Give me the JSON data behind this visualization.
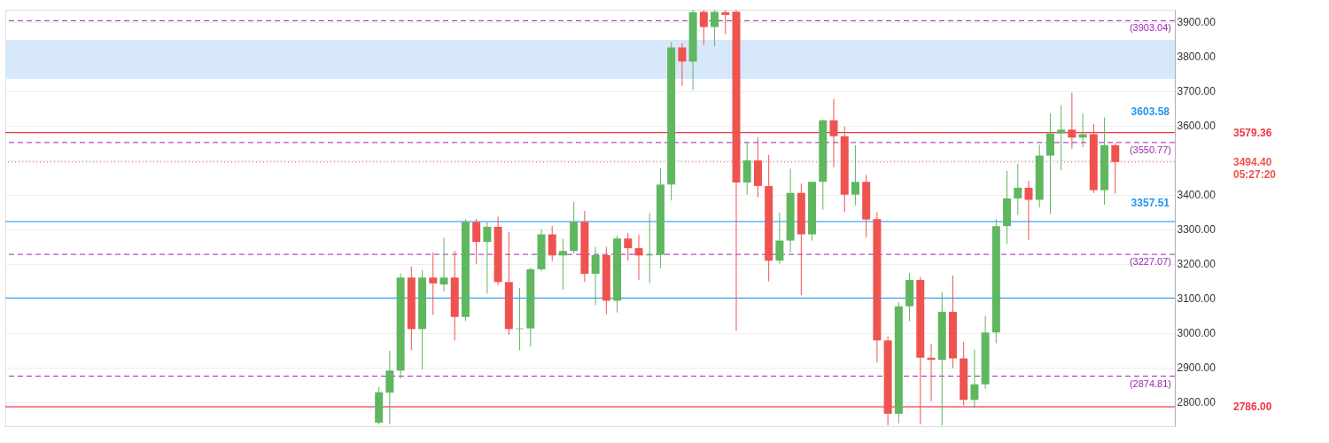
{
  "chart_data": {
    "type": "candlestick",
    "categories": [
      null,
      null,
      null,
      null,
      null,
      null,
      null,
      null,
      null,
      null,
      null,
      null,
      null,
      null,
      null,
      null,
      null,
      null,
      null,
      null,
      null,
      null,
      null,
      null,
      null,
      null,
      null,
      null,
      null,
      null,
      null,
      null,
      null,
      null,
      null,
      null,
      null,
      null,
      null,
      null,
      null,
      null,
      null,
      null,
      null,
      null,
      null,
      null,
      null,
      null,
      null,
      null,
      null,
      null,
      null,
      null,
      null,
      null,
      null,
      null,
      null,
      null,
      null,
      null,
      null,
      null,
      null,
      null,
      null,
      null,
      null,
      null,
      null,
      null,
      null,
      null,
      null,
      null,
      null,
      null,
      null,
      null,
      null,
      null,
      null,
      null,
      null,
      null,
      null,
      null,
      null,
      null,
      null,
      null,
      null,
      null,
      null,
      null,
      null,
      null,
      null,
      null,
      null,
      null,
      null,
      null,
      null,
      null
    ],
    "ohlc": [
      null,
      null,
      null,
      null,
      null,
      null,
      null,
      null,
      null,
      null,
      null,
      null,
      null,
      null,
      null,
      null,
      null,
      null,
      null,
      null,
      null,
      null,
      null,
      null,
      null,
      null,
      null,
      null,
      null,
      null,
      null,
      null,
      null,
      null,
      [
        2740,
        2843,
        2735,
        2828
      ],
      [
        2827,
        2948,
        2735,
        2891
      ],
      [
        2891,
        3172,
        2867,
        3160
      ],
      [
        3160,
        3192,
        2950,
        3011
      ],
      [
        3011,
        3181,
        2894,
        3160
      ],
      [
        3160,
        3233,
        3052,
        3143
      ],
      [
        3140,
        3275,
        3120,
        3160
      ],
      [
        3160,
        3237,
        2978,
        3046
      ],
      [
        3046,
        3329,
        3034,
        3321
      ],
      [
        3321,
        3330,
        3200,
        3263
      ],
      [
        3263,
        3321,
        3113,
        3307
      ],
      [
        3307,
        3336,
        3138,
        3147
      ],
      [
        3147,
        3291,
        2994,
        3011
      ],
      [
        3011,
        3130,
        2950,
        3013
      ],
      [
        3013,
        3189,
        2960,
        3184
      ],
      [
        3184,
        3301,
        3178,
        3285
      ],
      [
        3285,
        3309,
        3208,
        3224
      ],
      [
        3224,
        3272,
        3125,
        3237
      ],
      [
        3237,
        3379,
        3229,
        3321
      ],
      [
        3321,
        3353,
        3147,
        3171
      ],
      [
        3171,
        3249,
        3080,
        3225
      ],
      [
        3225,
        3249,
        3054,
        3093
      ],
      [
        3093,
        3281,
        3059,
        3273
      ],
      [
        3273,
        3289,
        3209,
        3245
      ],
      [
        3245,
        3285,
        3153,
        3224
      ],
      [
        3224,
        3347,
        3144,
        3226
      ],
      [
        3226,
        3476,
        3187,
        3429
      ],
      [
        3429,
        3842,
        3383,
        3826
      ],
      [
        3826,
        3838,
        3715,
        3785
      ],
      [
        3785,
        3934,
        3703,
        3928
      ],
      [
        3929,
        3934,
        3833,
        3885
      ],
      [
        3885,
        3934,
        3829,
        3929
      ],
      [
        3928,
        3934,
        3865,
        3920
      ],
      [
        3929,
        3934,
        3006,
        3435
      ],
      [
        3435,
        3553,
        3400,
        3499
      ],
      [
        3499,
        3565,
        3392,
        3425
      ],
      [
        3425,
        3515,
        3149,
        3209
      ],
      [
        3209,
        3348,
        3200,
        3267
      ],
      [
        3267,
        3475,
        3232,
        3405
      ],
      [
        3405,
        3432,
        3109,
        3285
      ],
      [
        3285,
        3437,
        3267,
        3437
      ],
      [
        3437,
        3617,
        3356,
        3615
      ],
      [
        3615,
        3677,
        3480,
        3569
      ],
      [
        3569,
        3597,
        3349,
        3400
      ],
      [
        3400,
        3543,
        3369,
        3437
      ],
      [
        3437,
        3457,
        3277,
        3328
      ],
      [
        3329,
        3349,
        2915,
        2978
      ],
      [
        2978,
        2990,
        2732,
        2766
      ],
      [
        2766,
        3089,
        2738,
        3077
      ],
      [
        3077,
        3173,
        3034,
        3153
      ],
      [
        3153,
        3162,
        2735,
        2928
      ],
      [
        2928,
        2968,
        2802,
        2922
      ],
      [
        2922,
        3117,
        2732,
        3061
      ],
      [
        3061,
        3166,
        2898,
        2926
      ],
      [
        2926,
        2974,
        2790,
        2806
      ],
      [
        2806,
        2952,
        2782,
        2851
      ],
      [
        2851,
        3049,
        2838,
        3001
      ],
      [
        3001,
        3329,
        2970,
        3309
      ],
      [
        3309,
        3469,
        3257,
        3389
      ],
      [
        3389,
        3489,
        3341,
        3420
      ],
      [
        3420,
        3440,
        3269,
        3385
      ],
      [
        3385,
        3545,
        3363,
        3513
      ],
      [
        3513,
        3635,
        3344,
        3577
      ],
      [
        3577,
        3659,
        3471,
        3588
      ],
      [
        3588,
        3695,
        3533,
        3565
      ],
      [
        3565,
        3635,
        3537,
        3575
      ],
      [
        3575,
        3605,
        3405,
        3413
      ],
      [
        3413,
        3623,
        3371,
        3543
      ],
      [
        3543,
        3549,
        3403,
        3494.4
      ],
      null,
      null,
      null,
      null,
      null
    ],
    "colors": [
      null,
      null,
      null,
      null,
      null,
      null,
      null,
      null,
      null,
      null,
      null,
      null,
      null,
      null,
      null,
      null,
      null,
      null,
      null,
      null,
      null,
      null,
      null,
      null,
      null,
      null,
      null,
      null,
      null,
      null,
      null,
      null,
      null,
      null,
      "#5fb760",
      "#5fb760",
      "#5fb760",
      "#ef5350",
      "#5fb760",
      "#ef5350",
      "#5fb760",
      "#ef5350",
      "#5fb760",
      "#ef5350",
      "#5fb760",
      "#ef5350",
      "#ef5350",
      "#5fb760",
      "#5fb760",
      "#5fb760",
      "#ef5350",
      "#5fb760",
      "#5fb760",
      "#ef5350",
      "#5fb760",
      "#ef5350",
      "#5fb760",
      "#ef5350",
      "#ef5350",
      "#5fb760",
      "#5fb760",
      "#5fb760",
      "#ef5350",
      "#5fb760",
      "#ef5350",
      "#5fb760",
      "#ef5350",
      "#ef5350",
      "#5fb760",
      "#ef5350",
      "#ef5350",
      "#5fb760",
      "#5fb760",
      "#ef5350",
      "#5fb760",
      "#5fb760",
      "#ef5350",
      "#ef5350",
      "#5fb760",
      "#ef5350",
      "#ef5350",
      "#ef5350",
      "#5fb760",
      "#5fb760",
      "#ef5350",
      "#ef5350",
      "#5fb760",
      "#ef5350",
      "#ef5350",
      "#5fb760",
      "#5fb760",
      "#5fb760",
      "#5fb760",
      "#5fb760",
      "#ef5350",
      "#5fb760",
      "#5fb760",
      "#5fb760",
      "#ef5350",
      "#5fb760",
      "#ef5350",
      "#5fb760",
      "#ef5350",
      null,
      null,
      null,
      null,
      null
    ],
    "ylim": [
      2730,
      3935
    ],
    "yticks": [
      {
        "value": 2800,
        "label": "2800.00"
      },
      {
        "value": 2900,
        "label": "2900.00"
      },
      {
        "value": 3000,
        "label": "3000.00"
      },
      {
        "value": 3100,
        "label": "3100.00"
      },
      {
        "value": 3200,
        "label": "3200.00"
      },
      {
        "value": 3300,
        "label": "3300.00"
      },
      {
        "value": 3400,
        "label": "3400.00"
      },
      {
        "value": 3500,
        "label": null
      },
      {
        "value": 3600,
        "label": "3600.00"
      },
      {
        "value": 3700,
        "label": "3700.00"
      },
      {
        "value": 3800,
        "label": "3800.00"
      },
      {
        "value": 3900,
        "label": "3900.00"
      }
    ],
    "grid": "y",
    "bands": [
      {
        "axis": "y",
        "from": 3735,
        "to": 3848,
        "color": "#d4e5fb"
      }
    ],
    "ref_lines": [
      {
        "axis": "y",
        "value": 3579.36,
        "label": "3579.36",
        "color": "#f23645",
        "line_style": "solid"
      },
      {
        "axis": "y",
        "value": 2786,
        "label": "2786.00",
        "color": "#f23645",
        "line_style": "solid"
      },
      {
        "axis": "y",
        "value": 3494.4,
        "label": "3494.40\n05:27:20",
        "color": "#ef5350",
        "line_style": "dotted"
      },
      {
        "axis": "y",
        "value": 3903.04,
        "label": "(3903.04)",
        "color": "#9c27b0",
        "line_style": "dashed"
      },
      {
        "axis": "y",
        "value": 3550.77,
        "label": "(3550.77)",
        "color": "#9c27b0",
        "line_style": "dashed"
      },
      {
        "axis": "y",
        "value": 3227.07,
        "label": "(3227.07)",
        "color": "#9c27b0",
        "line_style": "dashed"
      },
      {
        "axis": "y",
        "value": 2874.81,
        "label": "(2874.81)",
        "color": "#9c27b0",
        "line_style": "dashed"
      },
      {
        "axis": "y",
        "value": 3322,
        "color": "#42a5f5",
        "line_style": "solid"
      },
      {
        "axis": "y",
        "value": 3101,
        "color": "#42a5f5",
        "line_style": "solid"
      }
    ],
    "annotations": [
      "3603.58",
      "3357.51"
    ]
  }
}
